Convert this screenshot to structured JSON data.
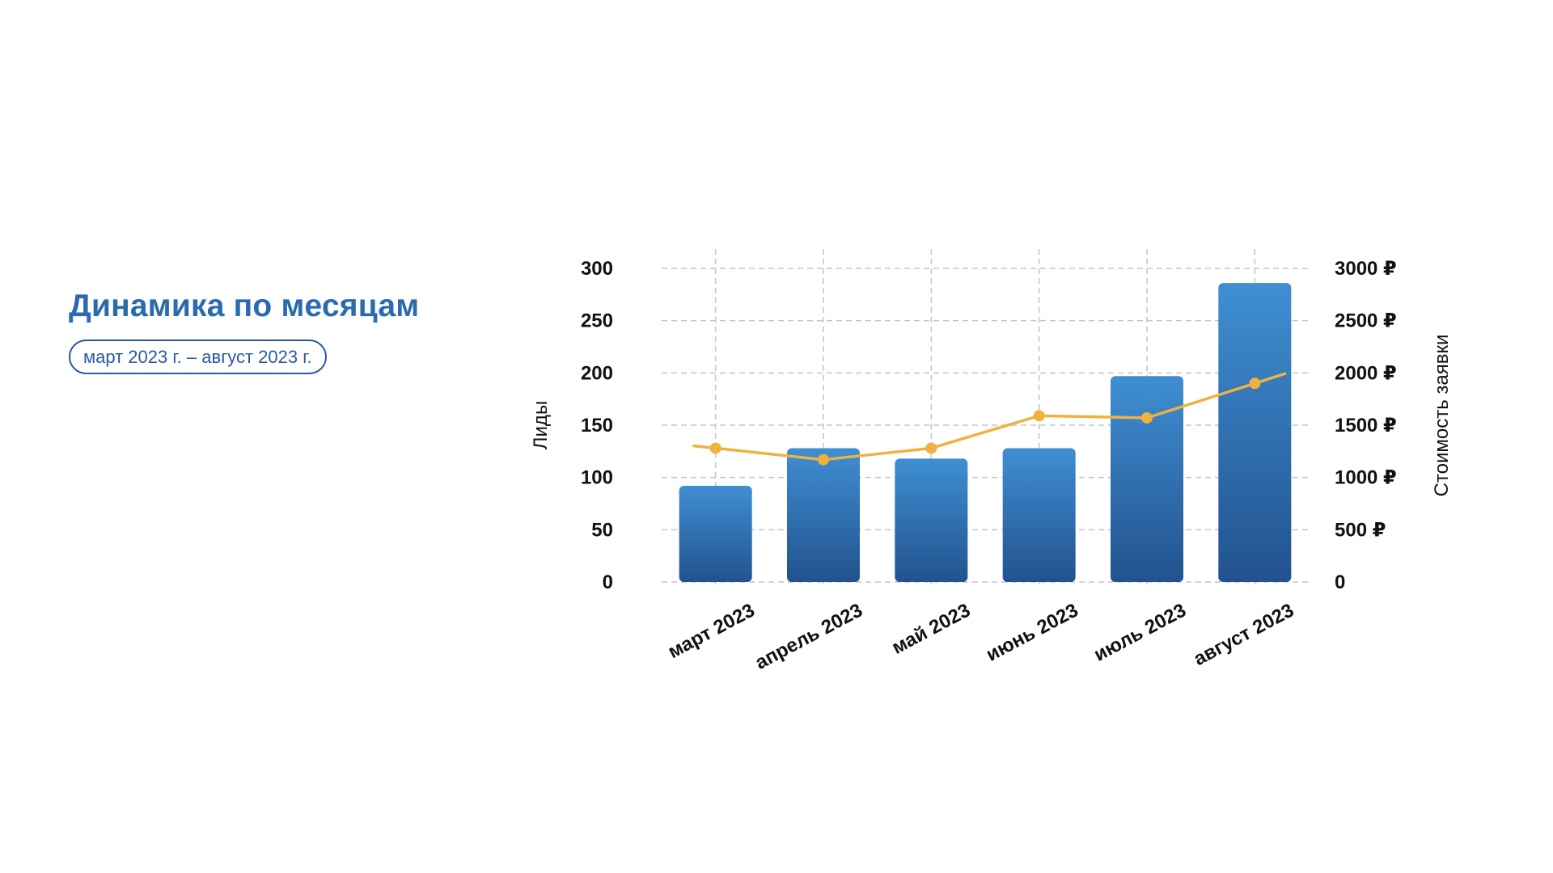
{
  "header": {
    "title": "Динамика по месяцам",
    "period": "март 2023 г. – август 2023 г."
  },
  "colors": {
    "title": "#2a6bb0",
    "bar_top": "#3f8fd2",
    "bar_bottom": "#22528f",
    "line": "#efb140",
    "grid": "#b9c7d0"
  },
  "chart_data": {
    "type": "bar",
    "categories": [
      "март 2023",
      "апрель 2023",
      "май 2023",
      "июнь 2023",
      "июль 2023",
      "август 2023"
    ],
    "series": [
      {
        "type": "bar",
        "axis": "left",
        "values": [
          92,
          128,
          118,
          128,
          197,
          286
        ]
      },
      {
        "type": "line",
        "axis": "right",
        "values": [
          1280,
          1170,
          1280,
          1590,
          1570,
          1900
        ]
      }
    ],
    "ylabel": "Лиды",
    "ylabel_right": "Стоимость заявки",
    "ylim": [
      0,
      300
    ],
    "ylim_right": [
      0,
      3000
    ],
    "yticks": [
      "0",
      "50",
      "100",
      "150",
      "200",
      "250",
      "300"
    ],
    "yticks_right": [
      "0",
      "500 ₽",
      "1000 ₽",
      "1500 ₽",
      "2000 ₽",
      "2500 ₽",
      "3000 ₽"
    ],
    "grid": true
  }
}
